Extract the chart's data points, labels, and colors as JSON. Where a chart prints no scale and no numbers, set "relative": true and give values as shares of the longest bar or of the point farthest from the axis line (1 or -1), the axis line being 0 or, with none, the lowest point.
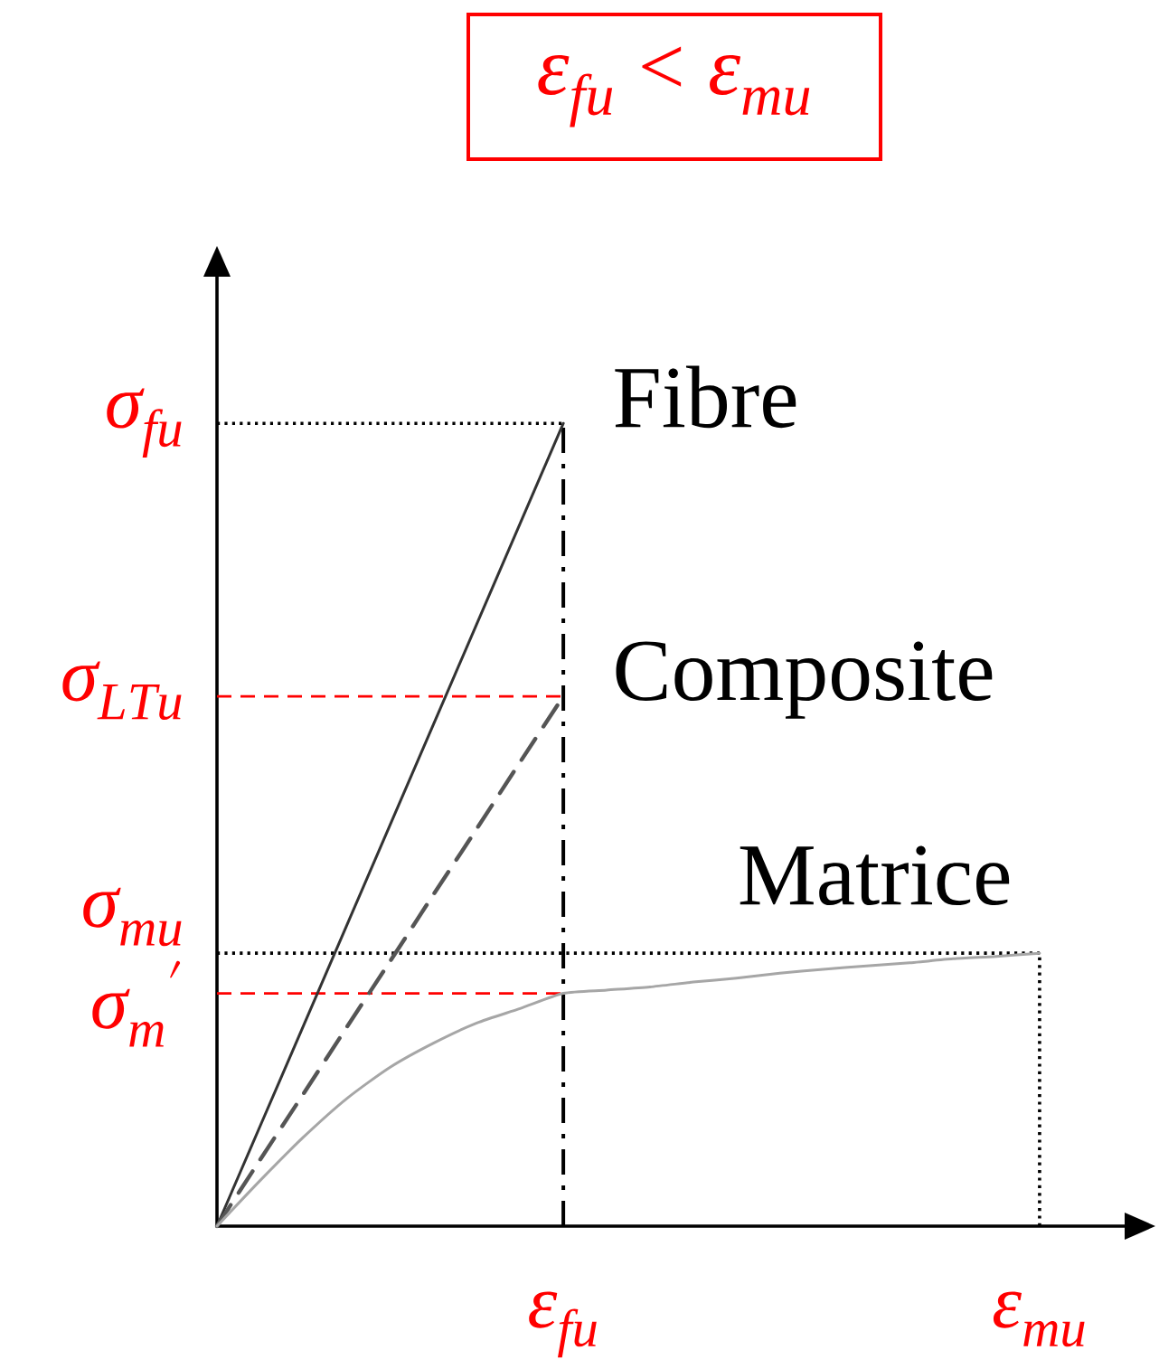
{
  "chart_data": {
    "type": "line",
    "title": "\\varepsilon_{fu}<\\varepsilon_{mu}",
    "relative": true,
    "categories": [
      null,
      null,
      null,
      null,
      null,
      null,
      null,
      null,
      "\\varepsilon_{fu}",
      null,
      null,
      null,
      null,
      null,
      null,
      null,
      null,
      null,
      null,
      "\\varepsilon_{mu}"
    ],
    "series": [
      {
        "name": "Fibre",
        "color": "#333333",
        "values": [
          0,
          0.125,
          0.25,
          0.375,
          0.5,
          0.625,
          0.75,
          0.875,
          1,
          null,
          null,
          null,
          null,
          null,
          null,
          null,
          null,
          null,
          null,
          null
        ]
      },
      {
        "name": "Composite",
        "color": "#555555",
        "line_style": "dashed",
        "values": [
          0,
          0.083,
          0.165,
          0.248,
          0.33,
          0.413,
          0.495,
          0.578,
          0.66,
          null,
          null,
          null,
          null,
          null,
          null,
          null,
          null,
          null,
          null,
          null
        ]
      },
      {
        "name": "Matrice",
        "color": "#a6a6a6",
        "values": [
          0,
          0.057,
          0.111,
          0.159,
          0.198,
          0.228,
          0.253,
          0.271,
          0.29,
          0.294,
          0.298,
          0.304,
          0.309,
          0.315,
          0.32,
          0.324,
          0.328,
          0.333,
          0.336,
          0.34
        ]
      }
    ],
    "ref_lines": [
      {
        "axis": "y",
        "value": 1,
        "label": "\\sigma_{fu}",
        "color": "#000000",
        "line_style": "dotted"
      },
      {
        "axis": "y",
        "value": 0.66,
        "label": "\\sigma_{LTu}",
        "color": "#ff0000",
        "line_style": "dashed"
      },
      {
        "axis": "y",
        "value": 0.34,
        "label": "\\sigma_{mu}",
        "color": "#000000",
        "line_style": "dotted"
      },
      {
        "axis": "y",
        "value": 0.29,
        "label": "\\sigma_{m}{}'",
        "color": "#ff0000",
        "line_style": "dashed"
      },
      {
        "axis": "x",
        "value": "\\varepsilon_{fu}",
        "color": "#000000",
        "line_style": "dashdot"
      },
      {
        "axis": "x",
        "value": "\\varepsilon_{mu}",
        "color": "#000000",
        "line_style": "dotted"
      }
    ]
  }
}
